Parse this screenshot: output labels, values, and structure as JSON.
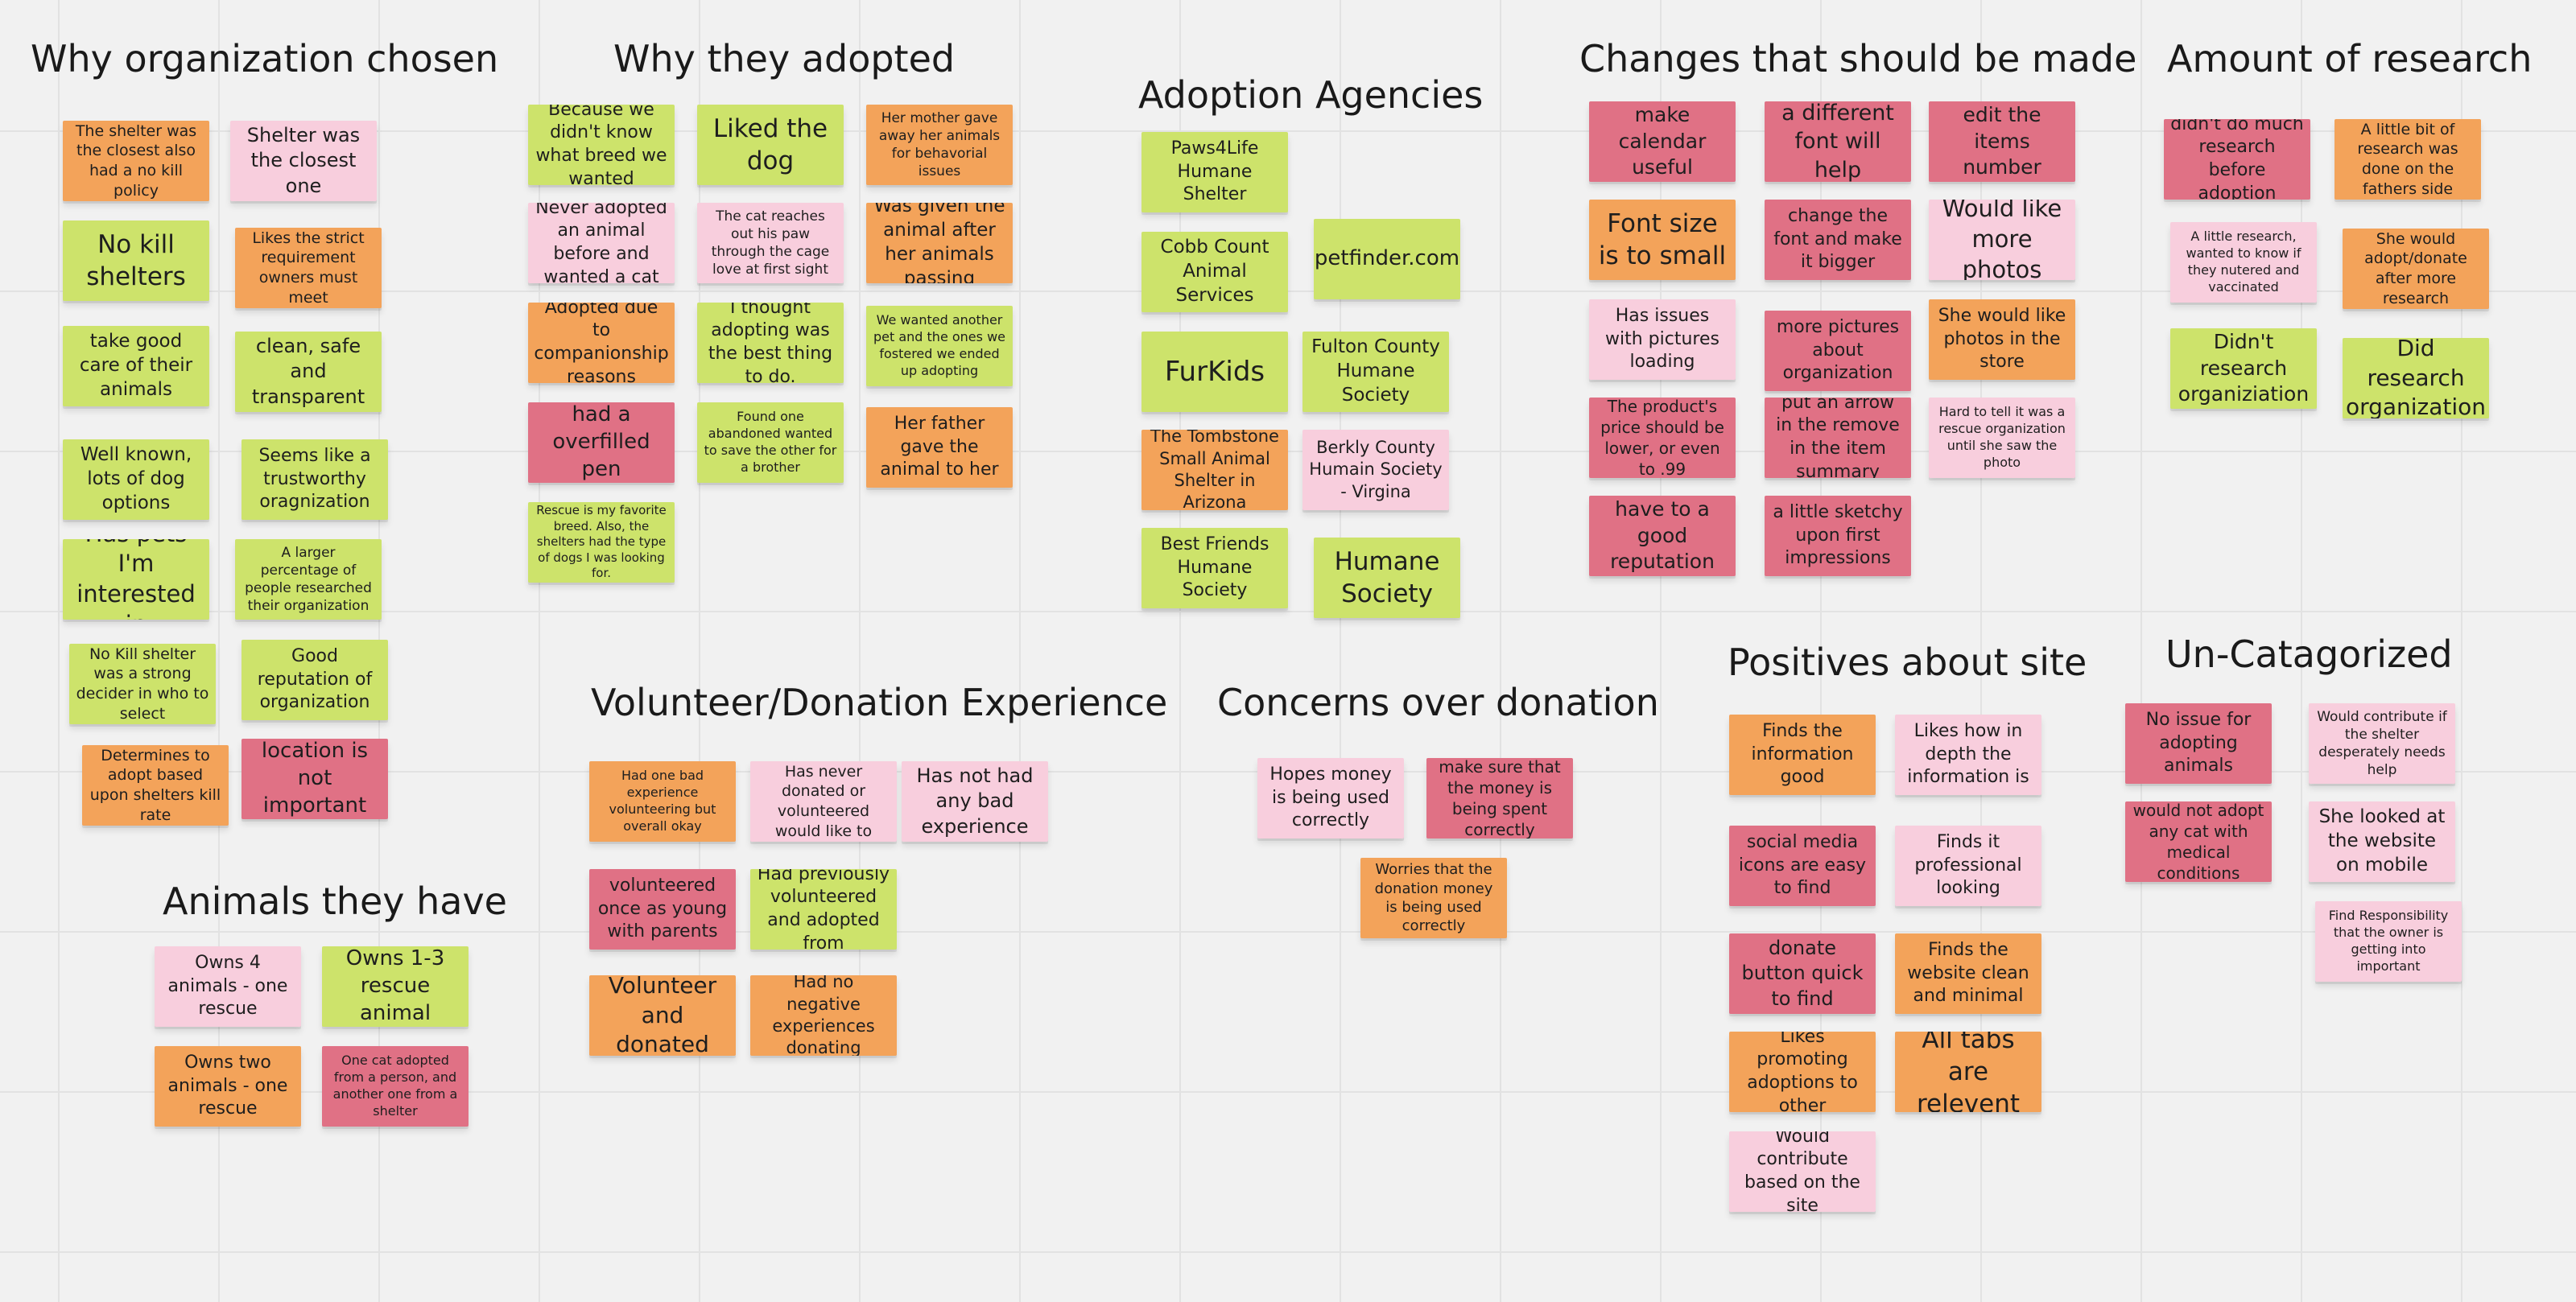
{
  "colors": {
    "canvas": "#f1f1f1",
    "grid": "#e2e2e2",
    "orange": "#f3a35a",
    "green": "#cde36b",
    "pink": "#f8cedd",
    "red": "#e07185"
  },
  "sections": {
    "why_org": {
      "title": "Why organization chosen",
      "notes": [
        "The shelter was the closest also had a no kill policy",
        "Shelter was the closest one",
        "No kill shelters",
        "Likes the strict requirement owners must meet",
        "take good care of their animals",
        "clean, safe and transparent",
        "Well known, lots of dog options",
        "Seems like a trustworthy oragnization",
        "Has pets I'm interested in",
        "A larger percentage of people researched their organization",
        "No Kill shelter was a strong decider in who to select",
        "Good reputation of organization",
        "Determines to adopt based upon shelters kill rate",
        "location is not important"
      ]
    },
    "why_adopted": {
      "title": "Why they adopted",
      "notes": [
        "Because we didn't know what breed we wanted",
        "Liked the dog",
        "Her mother gave away her animals for behavorial issues",
        "Never adopted an animal before and wanted a cat",
        "The cat reaches out his paw through the cage love at first sight",
        "Was given the animal after her animals passing",
        "Adopted due to companionship reasons",
        "I thought adopting was the best thing to do.",
        "We wanted another pet and the ones we fostered we ended up adopting",
        "had a overfilled pen",
        "Found one abandoned wanted to save the other for a brother",
        "Her father gave the animal to her",
        "Rescue is my favorite breed. Also, the shelters had the type of dogs I was looking for."
      ]
    },
    "agencies": {
      "title": "Adoption Agencies",
      "notes": [
        "Paws4Life Humane Shelter",
        "Cobb Count Animal Services",
        "petfinder.com",
        "FurKids",
        "Fulton County Humane Society",
        "The Tombstone Small Animal Shelter in Arizona",
        "Berkly County Humain Society - Virgina",
        "Best Friends Humane Society",
        "Humane Society"
      ]
    },
    "changes": {
      "title": "Changes that should be made",
      "notes": [
        "make calendar useful",
        "a different font will help",
        "edit the items number",
        "Font size is to small",
        "change the font and make it bigger",
        "Would like more photos",
        "Has issues with pictures loading",
        "more pictures about organization",
        "She would like photos in the store",
        "The product's price should be lower, or even to .99",
        "put an arrow in the remove in the item summary",
        "Hard to tell it was a rescue organization until she saw the photo",
        "have to a good reputation",
        "a little sketchy upon first impressions"
      ]
    },
    "research": {
      "title": "Amount of research",
      "notes": [
        "didn't do much research before adoption",
        "A little bit of research was done on the fathers side",
        "A little research, wanted to know if they nutered and vaccinated",
        "She would adopt/donate after more research",
        "Didn't research organiziation",
        "Did research organization"
      ]
    },
    "volunteer": {
      "title": "Volunteer/Donation Experience",
      "notes": [
        "Had one bad experience volunteering but overall okay",
        "Has never donated or volunteered would like to",
        "Has not had any bad experience",
        "volunteered once as young with parents",
        "Had previously volunteered and adopted from",
        "Volunteer and donated",
        "Had no negative experiences donating"
      ]
    },
    "concerns": {
      "title": "Concerns over donation",
      "notes": [
        "Hopes money is being used correctly",
        "make sure that the money is being spent correctly",
        "Worries that the donation money is being used correctly"
      ]
    },
    "positives": {
      "title": "Positives about site",
      "notes": [
        "Finds the information good",
        "Likes how in depth the information is",
        "social media icons are easy to find",
        "Finds it professional looking",
        "donate button quick to find",
        "Finds the website clean and minimal",
        "Likes promoting adoptions to other",
        "All tabs are relevent",
        "Would contribute based on the site"
      ]
    },
    "uncat": {
      "title": "Un-Catagorized",
      "notes": [
        "No issue for adopting animals",
        "Would contribute if the shelter desperately needs help",
        "would not adopt any cat with medical conditions",
        "She looked at the website on mobile",
        "Find Responsibility that the owner is getting into important"
      ]
    },
    "animals": {
      "title": "Animals they have",
      "notes": [
        "Owns 4 animals - one rescue",
        "Owns 1-3 rescue animal",
        "Owns two animals - one rescue",
        "One cat adopted from a person, and another one from a shelter"
      ]
    }
  }
}
